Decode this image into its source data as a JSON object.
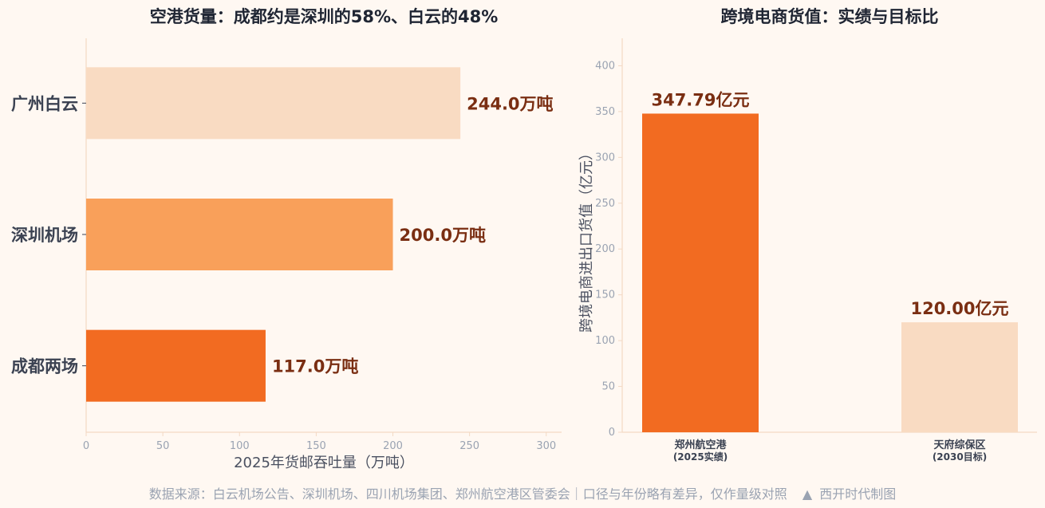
{
  "colors": {
    "background": "#fff8f2",
    "bar_dark": "#f26b21",
    "bar_mid": "#f9a05a",
    "bar_light": "#f9dbc2",
    "value_label": "#7a2e12",
    "title": "#1f2533",
    "tick_label": "#9aa3b2",
    "axis_line": "#f3d9c4"
  },
  "footer": {
    "text": "数据来源：白云机场公告、深圳机场、四川机场集团、郑州航空港区管委会｜口径与年份略有差异，仅作量级对照",
    "brand_icon": "triangle-icon",
    "brand": "西开时代制图"
  },
  "chart_data": [
    {
      "type": "bar",
      "orientation": "horizontal",
      "title": "空港货量：成都约是深圳的58%、白云的48%",
      "xlabel": "2025年货邮吞吐量（万吨）",
      "ylabel": "",
      "xlim": [
        0,
        310
      ],
      "xticks": [
        0,
        50,
        100,
        150,
        200,
        250,
        300
      ],
      "grid": false,
      "categories": [
        "广州白云",
        "深圳机场",
        "成都两场"
      ],
      "values": [
        244.0,
        200.0,
        117.0
      ],
      "value_labels": [
        "244.0万吨",
        "200.0万吨",
        "117.0万吨"
      ],
      "bar_colors": [
        "#f9dbc2",
        "#f9a05a",
        "#f26b21"
      ]
    },
    {
      "type": "bar",
      "orientation": "vertical",
      "title": "跨境电商货值：实绩与目标比",
      "xlabel": "",
      "ylabel": "跨境电商进出口货值（亿元）",
      "ylim": [
        0,
        430
      ],
      "yticks": [
        0,
        50,
        100,
        150,
        200,
        250,
        300,
        350,
        400
      ],
      "grid": false,
      "categories": [
        {
          "line1": "郑州航空港",
          "line2": "(2025实绩)"
        },
        {
          "line1": "天府综保区",
          "line2": "(2030目标)"
        }
      ],
      "values": [
        347.79,
        120.0
      ],
      "value_labels": [
        "347.79亿元",
        "120.00亿元"
      ],
      "bar_colors": [
        "#f26b21",
        "#f9dbc2"
      ]
    }
  ]
}
